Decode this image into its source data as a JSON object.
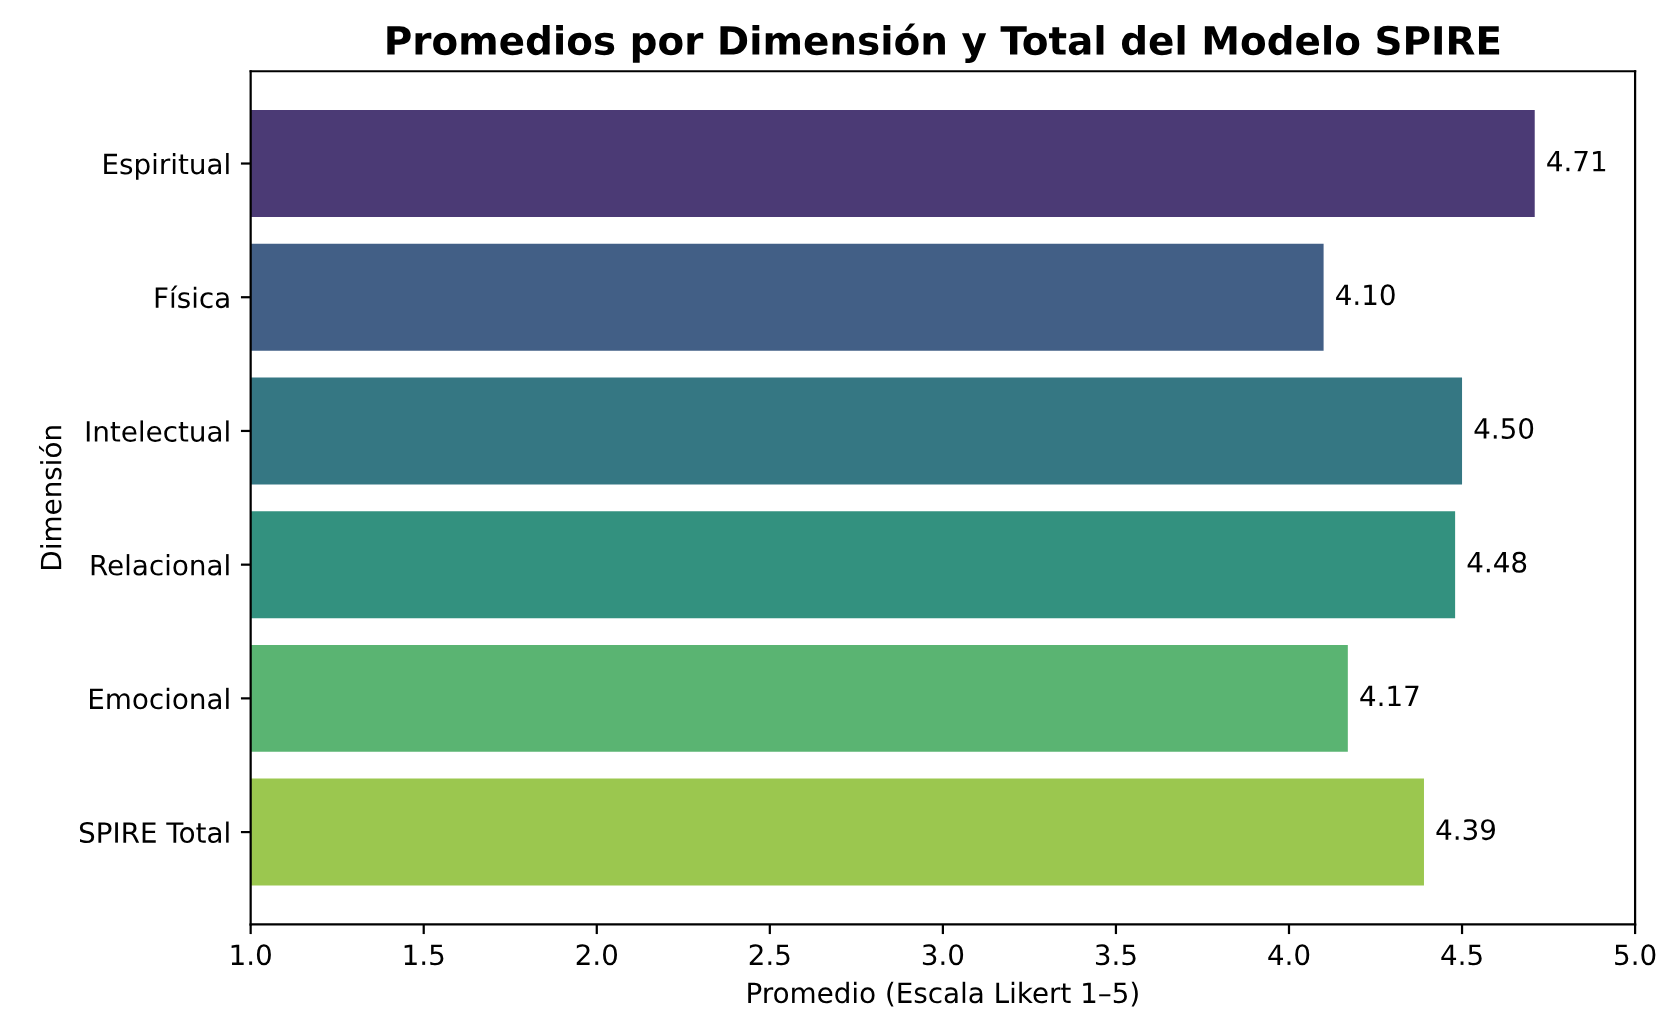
{
  "chart_data": {
    "type": "bar",
    "orientation": "horizontal",
    "title": "Promedios por Dimensión y Total del Modelo SPIRE",
    "xlabel": "Promedio (Escala Likert 1–5)",
    "ylabel": "Dimensión",
    "categories": [
      "Espiritual",
      "Física",
      "Intelectual",
      "Relacional",
      "Emocional",
      "SPIRE Total"
    ],
    "values": [
      4.71,
      4.1,
      4.5,
      4.48,
      4.17,
      4.39
    ],
    "value_labels": [
      "4.71",
      "4.10",
      "4.50",
      "4.48",
      "4.17",
      "4.39"
    ],
    "colors": [
      "#4b3a75",
      "#425f86",
      "#357783",
      "#33917f",
      "#5ab472",
      "#9bc74f"
    ],
    "xlim": [
      1.0,
      5.0
    ],
    "xticks": [
      {
        "value": 1.0,
        "label": "1.0"
      },
      {
        "value": 1.5,
        "label": "1.5"
      },
      {
        "value": 2.0,
        "label": "2.0"
      },
      {
        "value": 2.5,
        "label": "2.5"
      },
      {
        "value": 3.0,
        "label": "3.0"
      },
      {
        "value": 3.5,
        "label": "3.5"
      },
      {
        "value": 4.0,
        "label": "4.0"
      },
      {
        "value": 4.5,
        "label": "4.5"
      },
      {
        "value": 5.0,
        "label": "5.0"
      }
    ],
    "grid": false,
    "legend": false
  }
}
